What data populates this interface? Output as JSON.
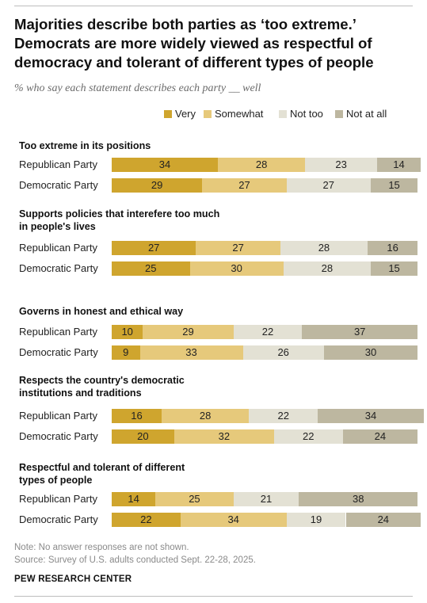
{
  "title": "Majorities describe both parties as ‘too extreme.’ Democrats are more widely viewed as respectful of democracy and tolerant of different types of people",
  "subtitle": "% who say each statement describes each party __ well",
  "colors": {
    "very": "#cfa52e",
    "somewhat": "#e6c97b",
    "not_too": "#e3e1d4",
    "not_at_all": "#bdb7a0"
  },
  "legend": {
    "very": "Very",
    "somewhat": "Somewhat",
    "not_too": "Not too",
    "not_at_all": "Not at all"
  },
  "note": "Note: No answer responses are not shown.",
  "source": "Source: Survey of U.S. adults conducted Sept. 22-28, 2025.",
  "org": "PEW RESEARCH CENTER",
  "chart_data": {
    "type": "bar",
    "stacked": true,
    "orientation": "horizontal",
    "legend_position": "top",
    "series": [
      {
        "name": "Very"
      },
      {
        "name": "Somewhat"
      },
      {
        "name": "Not too"
      },
      {
        "name": "Not at all"
      }
    ],
    "groups": [
      {
        "title": "Too extreme in its positions",
        "rows": [
          {
            "label": "Republican Party",
            "values": [
              34,
              28,
              23,
              14
            ]
          },
          {
            "label": "Democratic Party",
            "values": [
              29,
              27,
              27,
              15
            ]
          }
        ]
      },
      {
        "title": "Supports policies that interefere too much in people's lives",
        "rows": [
          {
            "label": "Republican Party",
            "values": [
              27,
              27,
              28,
              16
            ]
          },
          {
            "label": "Democratic Party",
            "values": [
              25,
              30,
              28,
              15
            ]
          }
        ]
      },
      {
        "title": "Governs in honest and ethical way",
        "rows": [
          {
            "label": "Republican Party",
            "values": [
              10,
              29,
              22,
              37
            ]
          },
          {
            "label": "Democratic Party",
            "values": [
              9,
              33,
              26,
              30
            ]
          }
        ]
      },
      {
        "title": "Respects the country's democratic institutions and traditions",
        "rows": [
          {
            "label": "Republican Party",
            "values": [
              16,
              28,
              22,
              34
            ]
          },
          {
            "label": "Democratic Party",
            "values": [
              20,
              32,
              22,
              24
            ]
          }
        ]
      },
      {
        "title": "Respectful and tolerant of different types of people",
        "rows": [
          {
            "label": "Republican Party",
            "values": [
              14,
              25,
              21,
              38
            ]
          },
          {
            "label": "Democratic Party",
            "values": [
              22,
              34,
              19,
              24
            ]
          }
        ]
      }
    ]
  }
}
